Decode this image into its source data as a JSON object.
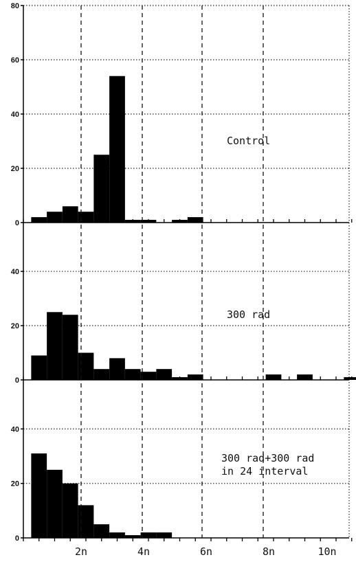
{
  "chart_data": [
    {
      "type": "bar",
      "label": "Control",
      "ylim": [
        0,
        80
      ],
      "yticks": [
        "80",
        "60",
        "40",
        "20",
        "0"
      ],
      "bin_width_n": 0.5,
      "bins": [
        {
          "x": 0.5,
          "value": 2
        },
        {
          "x": 1.0,
          "value": 4
        },
        {
          "x": 1.5,
          "value": 6
        },
        {
          "x": 2.0,
          "value": 4
        },
        {
          "x": 2.5,
          "value": 25
        },
        {
          "x": 3.0,
          "value": 54
        },
        {
          "x": 3.5,
          "value": 1
        },
        {
          "x": 4.0,
          "value": 1
        },
        {
          "x": 5.0,
          "value": 1
        },
        {
          "x": 5.5,
          "value": 2
        }
      ]
    },
    {
      "type": "bar",
      "label": "300 rad",
      "ylim": [
        0,
        60
      ],
      "yticks": [
        "40",
        "20",
        "0"
      ],
      "bin_width_n": 0.5,
      "bins": [
        {
          "x": 0.5,
          "value": 9
        },
        {
          "x": 1.0,
          "value": 25
        },
        {
          "x": 1.5,
          "value": 24
        },
        {
          "x": 2.0,
          "value": 10
        },
        {
          "x": 2.5,
          "value": 4
        },
        {
          "x": 3.0,
          "value": 8
        },
        {
          "x": 3.5,
          "value": 4
        },
        {
          "x": 4.0,
          "value": 3
        },
        {
          "x": 4.5,
          "value": 4
        },
        {
          "x": 5.0,
          "value": 1
        },
        {
          "x": 5.5,
          "value": 2
        },
        {
          "x": 8.0,
          "value": 2
        },
        {
          "x": 9.0,
          "value": 2
        },
        {
          "x": 10.5,
          "value": 1
        }
      ]
    },
    {
      "type": "bar",
      "label": "300 rad+300 rad\nin 24 interval",
      "ylim": [
        0,
        60
      ],
      "yticks": [
        "40",
        "20",
        "0"
      ],
      "bin_width_n": 0.5,
      "bins": [
        {
          "x": 0.5,
          "value": 31
        },
        {
          "x": 1.0,
          "value": 25
        },
        {
          "x": 1.5,
          "value": 20
        },
        {
          "x": 2.0,
          "value": 12
        },
        {
          "x": 2.5,
          "value": 5
        },
        {
          "x": 3.0,
          "value": 2
        },
        {
          "x": 3.5,
          "value": 1
        },
        {
          "x": 4.0,
          "value": 2
        },
        {
          "x": 4.5,
          "value": 2
        }
      ]
    }
  ],
  "x_axis": {
    "ticks": [
      "2n",
      "4n",
      "6n",
      "8n",
      "10n"
    ],
    "tick_values": [
      2,
      4,
      6,
      8,
      10
    ],
    "dashed_lines_at": [
      2,
      4,
      6,
      8
    ],
    "range": [
      0,
      10.5
    ]
  }
}
